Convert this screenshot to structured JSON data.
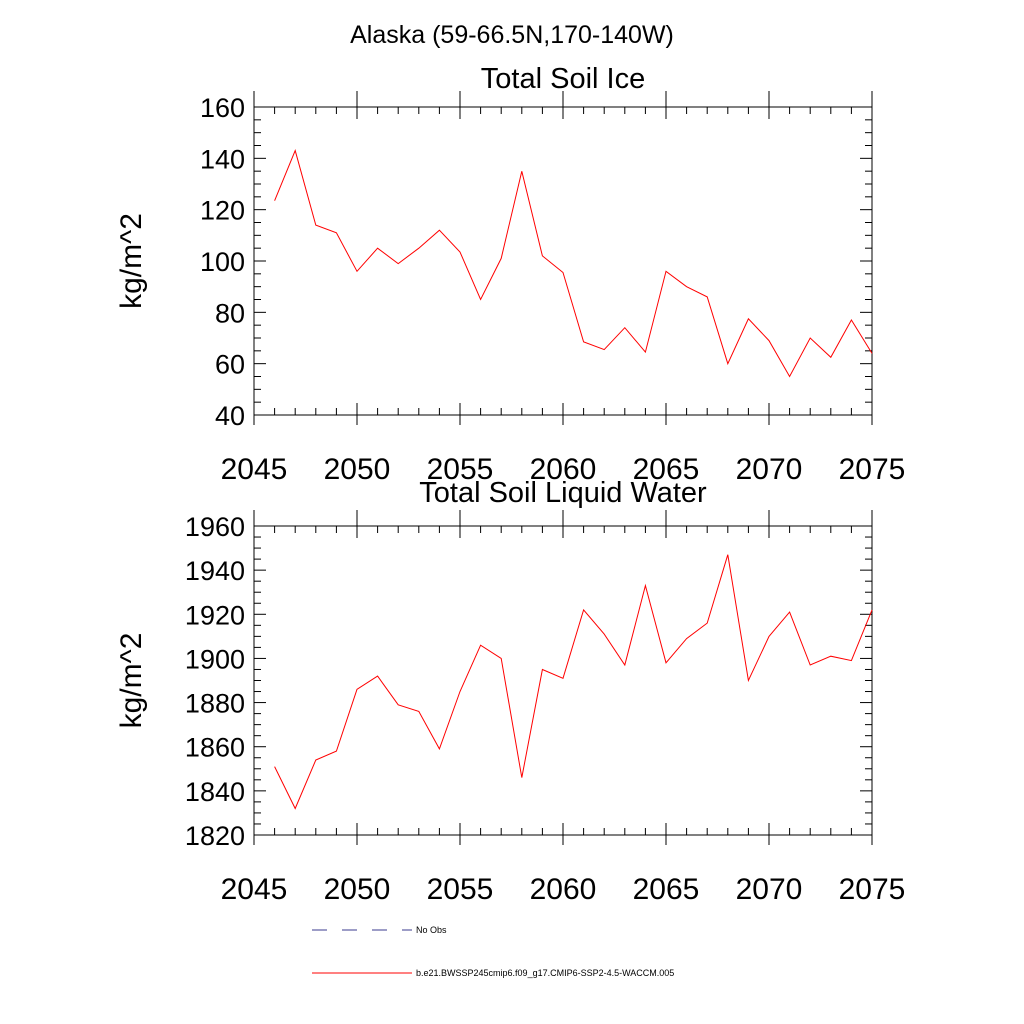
{
  "main_title": "Alaska (59-66.5N,170-140W)",
  "legend": {
    "items": [
      {
        "label": "No Obs",
        "color": "#3b3b8f",
        "dash": "dashed"
      },
      {
        "label": "b.e21.BWSSP245cmip6.f09_g17.CMIP6-SSP2-4.5-WACCM.005",
        "color": "#ff0000",
        "dash": "solid"
      }
    ]
  },
  "chart_data": [
    {
      "type": "line",
      "title": "Total Soil Ice",
      "xlabel": "",
      "ylabel": "kg/m^2",
      "xlim": [
        2045,
        2075
      ],
      "ylim": [
        40,
        160
      ],
      "x_ticks": [
        2045,
        2050,
        2055,
        2060,
        2065,
        2070,
        2075
      ],
      "y_ticks": [
        40,
        60,
        80,
        100,
        120,
        140,
        160
      ],
      "y_minor_step": 5,
      "x_minor_step": 1,
      "series": [
        {
          "name": "b.e21.BWSSP245cmip6.f09_g17.CMIP6-SSP2-4.5-WACCM.005",
          "color": "#ff0000",
          "x": [
            2046,
            2047,
            2048,
            2049,
            2050,
            2051,
            2052,
            2053,
            2054,
            2055,
            2056,
            2057,
            2058,
            2059,
            2060,
            2061,
            2062,
            2063,
            2064,
            2065,
            2066,
            2067,
            2068,
            2069,
            2070,
            2071,
            2072,
            2073,
            2074,
            2075
          ],
          "values": [
            123.5,
            143,
            114,
            111,
            96,
            105,
            99,
            105,
            112,
            103.5,
            85,
            101,
            135,
            102,
            95.5,
            68.5,
            65.5,
            74,
            64.5,
            96,
            90,
            86,
            60,
            77.5,
            69,
            55,
            70,
            62.5,
            77,
            64
          ]
        }
      ]
    },
    {
      "type": "line",
      "title": "Total Soil Liquid Water",
      "xlabel": "",
      "ylabel": "kg/m^2",
      "xlim": [
        2045,
        2075
      ],
      "ylim": [
        1820,
        1960
      ],
      "x_ticks": [
        2045,
        2050,
        2055,
        2060,
        2065,
        2070,
        2075
      ],
      "y_ticks": [
        1820,
        1840,
        1860,
        1880,
        1900,
        1920,
        1940,
        1960
      ],
      "y_minor_step": 5,
      "x_minor_step": 1,
      "series": [
        {
          "name": "b.e21.BWSSP245cmip6.f09_g17.CMIP6-SSP2-4.5-WACCM.005",
          "color": "#ff0000",
          "x": [
            2046,
            2047,
            2048,
            2049,
            2050,
            2051,
            2052,
            2053,
            2054,
            2055,
            2056,
            2057,
            2058,
            2059,
            2060,
            2061,
            2062,
            2063,
            2064,
            2065,
            2066,
            2067,
            2068,
            2069,
            2070,
            2071,
            2072,
            2073,
            2074,
            2075
          ],
          "values": [
            1851,
            1832,
            1854,
            1858,
            1886,
            1892,
            1879,
            1876,
            1859,
            1885,
            1906,
            1900,
            1846,
            1895,
            1891,
            1922,
            1911,
            1897,
            1933,
            1898,
            1909,
            1916,
            1947,
            1890,
            1910,
            1921,
            1897,
            1901,
            1899,
            1922
          ]
        }
      ]
    }
  ]
}
